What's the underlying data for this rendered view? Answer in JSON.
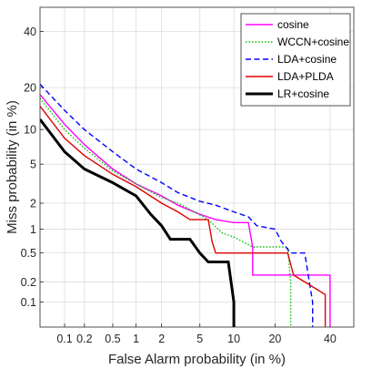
{
  "chart_data": {
    "type": "line",
    "title": "",
    "xlabel": "False Alarm probability (in %)",
    "ylabel": "Miss probability (in %)",
    "x_scale": "probit",
    "y_scale": "probit",
    "xlim": [
      0.04,
      50
    ],
    "ylim": [
      0.04,
      50
    ],
    "x_ticks": [
      0.1,
      0.2,
      0.5,
      1,
      2,
      5,
      10,
      20,
      40
    ],
    "x_tick_labels": [
      "0.1",
      "0.2",
      "0.5",
      "1",
      "2",
      "5",
      "10",
      "20",
      "40"
    ],
    "y_ticks": [
      0.1,
      0.2,
      0.5,
      1,
      2,
      5,
      10,
      20,
      40
    ],
    "y_tick_labels": [
      "0.1",
      "0.2",
      "0.5",
      "1",
      "2",
      "5",
      "10",
      "20",
      "40"
    ],
    "grid": true,
    "legend_position": "top-right",
    "series": [
      {
        "name": "cosine",
        "color": "#ff00ff",
        "style": "solid",
        "x": [
          0.04,
          0.1,
          0.2,
          0.5,
          1,
          2,
          3,
          5,
          7,
          10,
          13,
          14,
          14,
          35,
          40,
          40
        ],
        "y": [
          18,
          11,
          7.5,
          4.5,
          3.2,
          2.4,
          1.9,
          1.5,
          1.3,
          1.2,
          1.2,
          0.6,
          0.25,
          0.25,
          0.25,
          0.04
        ]
      },
      {
        "name": "WCCN+cosine",
        "color": "#00c000",
        "style": "dotted",
        "x": [
          0.04,
          0.1,
          0.2,
          0.5,
          1,
          2,
          3,
          4,
          6,
          8,
          10,
          14,
          24,
          25,
          25
        ],
        "y": [
          17,
          10,
          7,
          4.3,
          3.2,
          2.3,
          2,
          1.7,
          1.3,
          0.9,
          0.8,
          0.6,
          0.6,
          0.2,
          0.04
        ]
      },
      {
        "name": "LDA+cosine",
        "color": "#0000ff",
        "style": "dashed",
        "x": [
          0.04,
          0.1,
          0.2,
          0.5,
          1,
          2,
          3,
          5,
          7,
          10,
          13,
          15,
          20,
          22,
          25,
          30,
          33,
          33
        ],
        "y": [
          21,
          14,
          10,
          6.5,
          4.5,
          3.3,
          2.6,
          2.1,
          1.9,
          1.6,
          1.4,
          1.1,
          1.0,
          0.7,
          0.5,
          0.5,
          0.1,
          0.04
        ]
      },
      {
        "name": "LDA+PLDA",
        "color": "#e00000",
        "style": "solid",
        "x": [
          0.04,
          0.1,
          0.2,
          0.5,
          1,
          2,
          3,
          4,
          5,
          6,
          6.5,
          7,
          13,
          24,
          26,
          38,
          38
        ],
        "y": [
          15,
          8.5,
          6,
          4,
          3,
          2,
          1.6,
          1.3,
          1.3,
          1.3,
          0.7,
          0.5,
          0.5,
          0.5,
          0.25,
          0.13,
          0.04
        ]
      },
      {
        "name": "LR+cosine",
        "color": "#000000",
        "style": "solid",
        "x": [
          0.04,
          0.1,
          0.2,
          0.5,
          1,
          1.5,
          2,
          2.5,
          3,
          4,
          5,
          6,
          7,
          9,
          10,
          10
        ],
        "y": [
          12,
          6.5,
          4.5,
          3.3,
          2.4,
          1.5,
          1.1,
          0.75,
          0.75,
          0.75,
          0.5,
          0.38,
          0.38,
          0.38,
          0.1,
          0.04
        ]
      }
    ]
  }
}
